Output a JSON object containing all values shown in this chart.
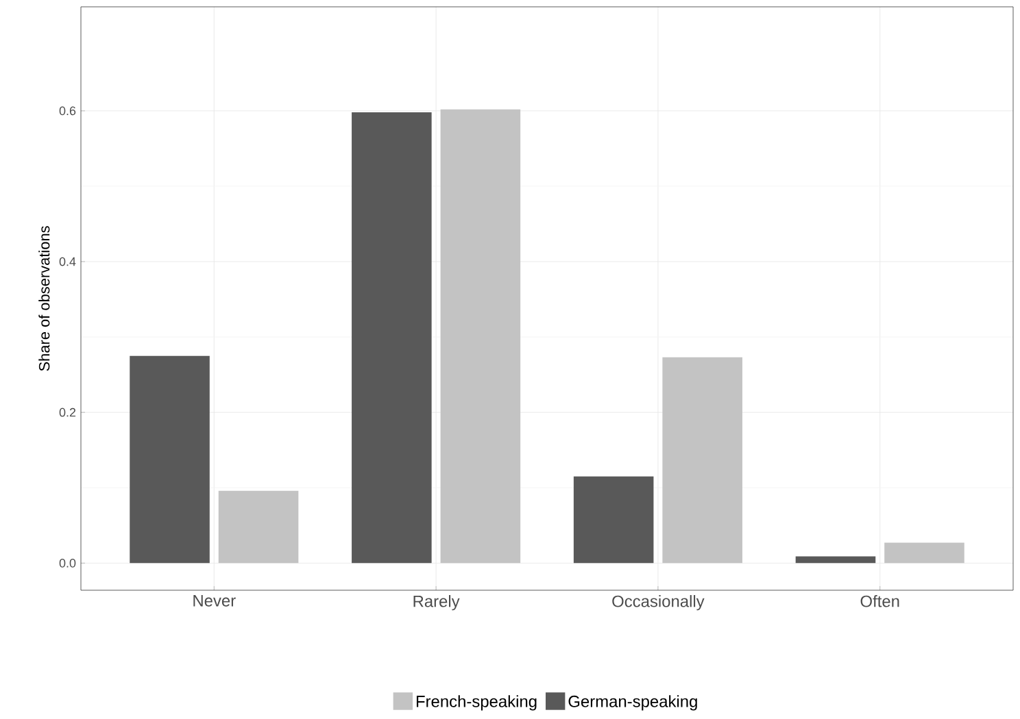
{
  "chart_data": {
    "type": "bar",
    "ylabel": "Share of observations",
    "categories": [
      "Never",
      "Rarely",
      "Occasionally",
      "Often"
    ],
    "series": [
      {
        "name": "German-speaking",
        "color": "#595959",
        "values": [
          0.275,
          0.598,
          0.115,
          0.009
        ]
      },
      {
        "name": "French-speaking",
        "color": "#c3c3c3",
        "values": [
          0.096,
          0.602,
          0.273,
          0.027
        ]
      }
    ],
    "ylim": [
      -0.036,
      0.738
    ],
    "yticks": [
      {
        "value": 0,
        "label": "0.0"
      },
      0.2,
      0.4,
      0.6
    ],
    "grid": true,
    "legend": "bottom"
  }
}
